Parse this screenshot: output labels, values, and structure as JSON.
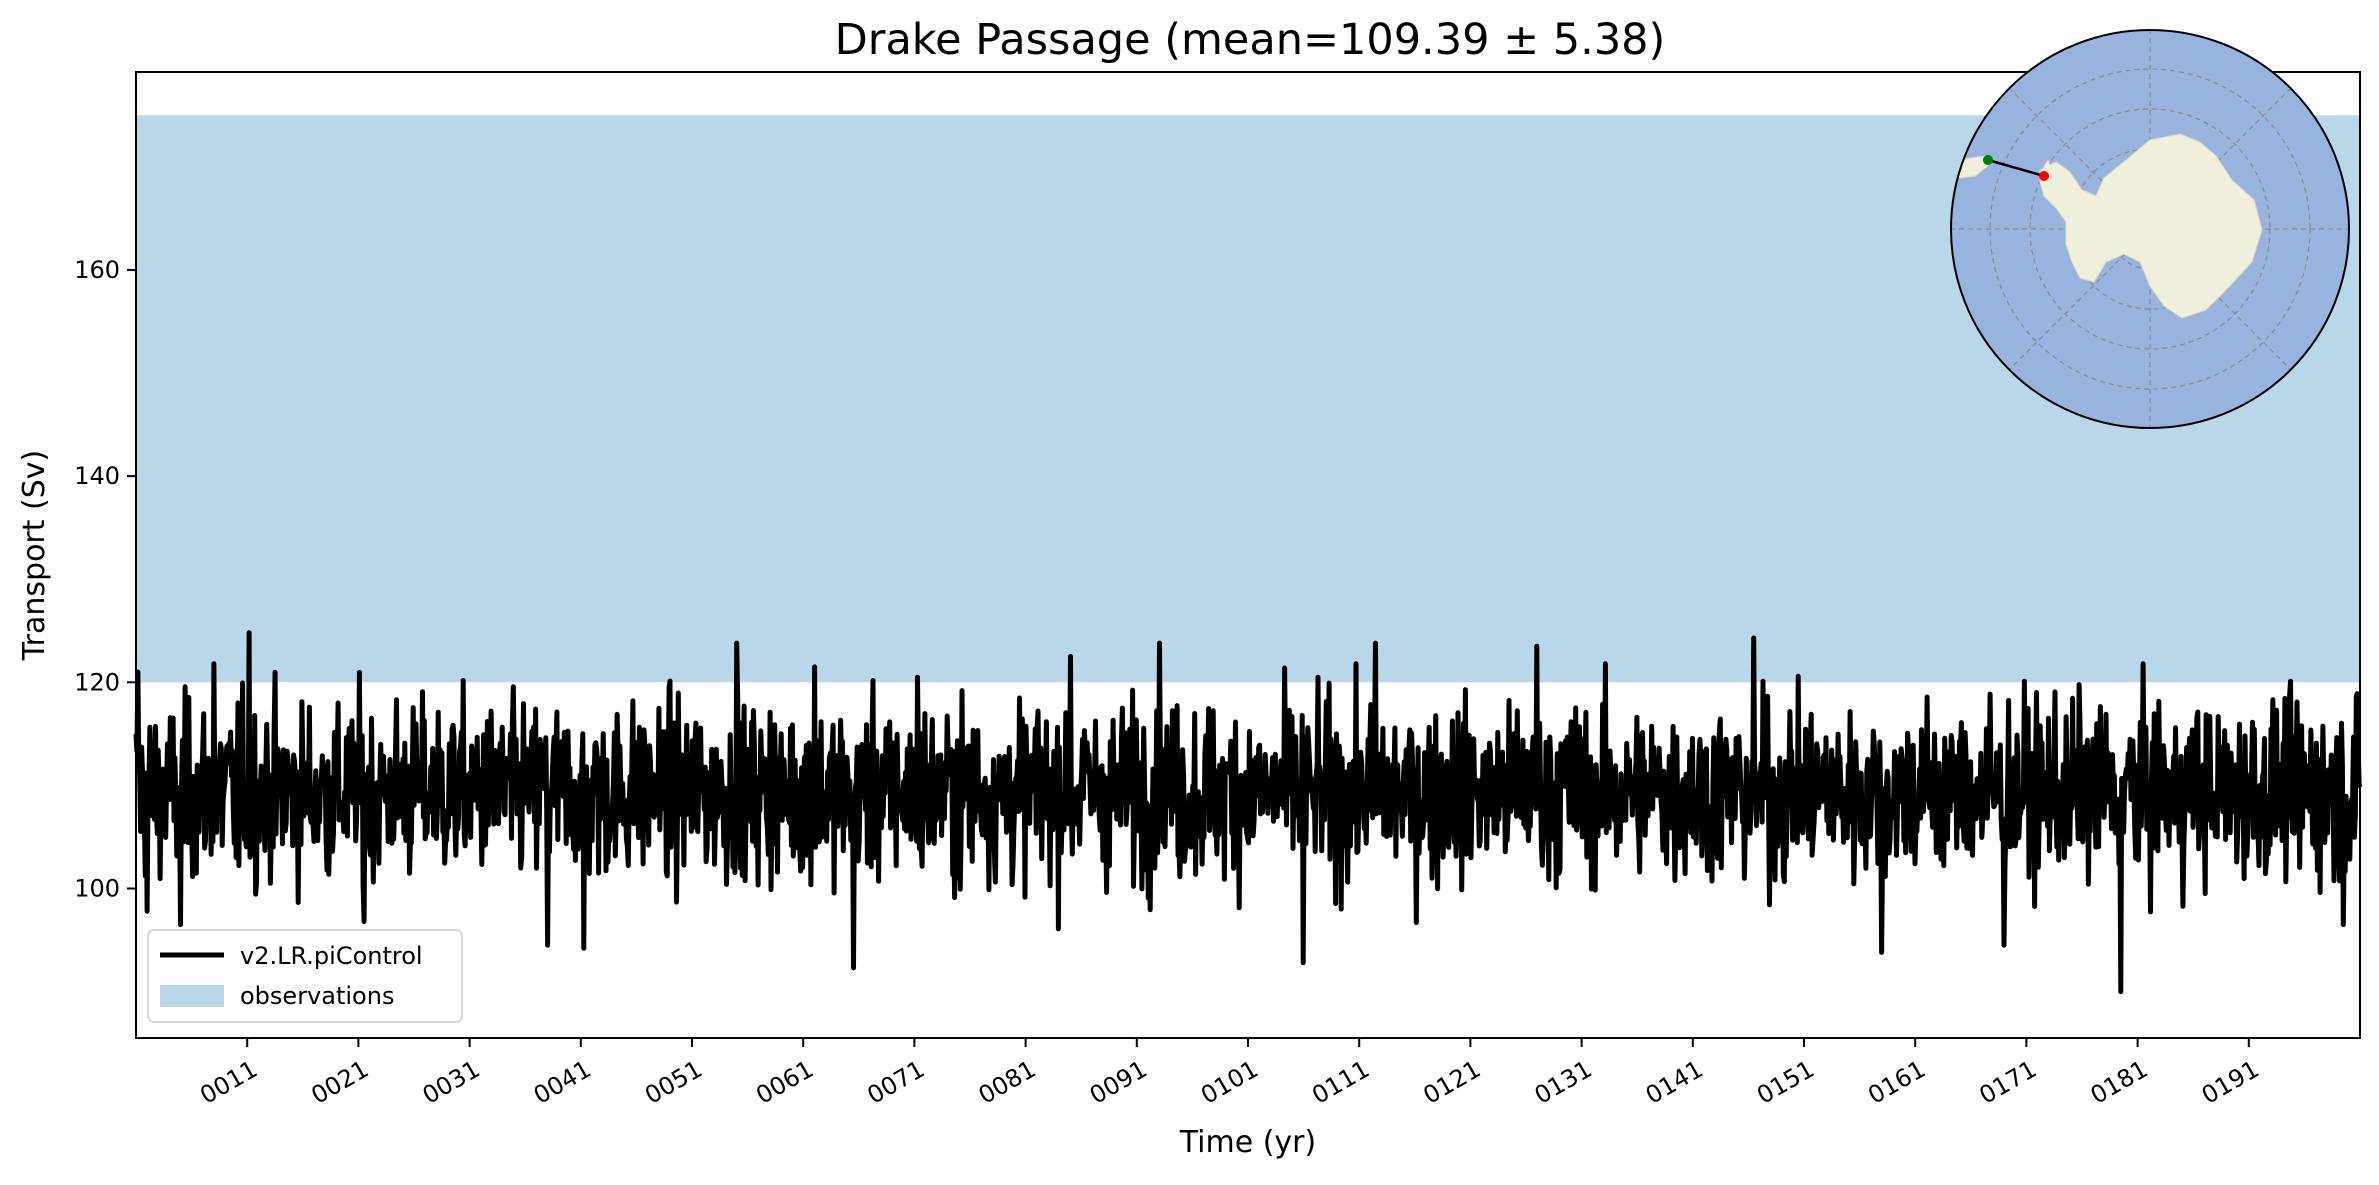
{
  "chart_data": {
    "type": "line",
    "title": "Drake Passage (mean=109.39 ± 5.38)",
    "xlabel": "Time (yr)",
    "ylabel": "Transport (Sv)",
    "xlim": [
      1,
      201
    ],
    "ylim": [
      85.5,
      179.2
    ],
    "x_tick_values": [
      11,
      21,
      31,
      41,
      51,
      61,
      71,
      81,
      91,
      101,
      111,
      121,
      131,
      141,
      151,
      161,
      171,
      181,
      191
    ],
    "x_tick_labels": [
      "0011",
      "0021",
      "0031",
      "0041",
      "0051",
      "0061",
      "0071",
      "0081",
      "0091",
      "0101",
      "0111",
      "0121",
      "0131",
      "0141",
      "0151",
      "0161",
      "0171",
      "0181",
      "0191"
    ],
    "y_ticks": [
      100,
      120,
      140,
      160
    ],
    "grid": false,
    "legend_position": "lower-left",
    "observations": {
      "name": "observations",
      "range": [
        120,
        175
      ],
      "color": "#bad6e9"
    },
    "series": [
      {
        "name": "v2.LR.piControl",
        "color": "#000000",
        "description_of_values": "monthly transport; values as listed below (subset of visible peaks/troughs, interpolated by noise)",
        "mean": 109.39,
        "std": 5.38,
        "min": 90.0,
        "max": 124.8,
        "annual_markers": [
          {
            "x": 1.2,
            "y": 121.0
          },
          {
            "x": 2.0,
            "y": 97.8
          },
          {
            "x": 5.0,
            "y": 96.5
          },
          {
            "x": 8.0,
            "y": 121.8
          },
          {
            "x": 10.0,
            "y": 103.0
          },
          {
            "x": 11.2,
            "y": 124.8
          },
          {
            "x": 21.5,
            "y": 96.8
          },
          {
            "x": 38.0,
            "y": 94.5
          },
          {
            "x": 41.3,
            "y": 94.2
          },
          {
            "x": 55.0,
            "y": 123.8
          },
          {
            "x": 62.0,
            "y": 121.5
          },
          {
            "x": 65.5,
            "y": 92.3
          },
          {
            "x": 71.3,
            "y": 120.5
          },
          {
            "x": 85.0,
            "y": 122.5
          },
          {
            "x": 93.0,
            "y": 123.8
          },
          {
            "x": 106.0,
            "y": 92.8
          },
          {
            "x": 112.5,
            "y": 123.8
          },
          {
            "x": 127.0,
            "y": 123.5
          },
          {
            "x": 146.5,
            "y": 124.3
          },
          {
            "x": 158.0,
            "y": 93.8
          },
          {
            "x": 169.0,
            "y": 94.5
          },
          {
            "x": 179.5,
            "y": 90.0
          },
          {
            "x": 199.5,
            "y": 96.5
          }
        ]
      }
    ]
  },
  "inset_map": {
    "type": "south-polar-stereographic",
    "ocean_color": "#98b4de",
    "land_color": "#efefdb",
    "section_start_color": "#008000",
    "section_end_color": "#ff0000"
  },
  "legend": {
    "line_label": "v2.LR.piControl",
    "patch_label": "observations"
  }
}
